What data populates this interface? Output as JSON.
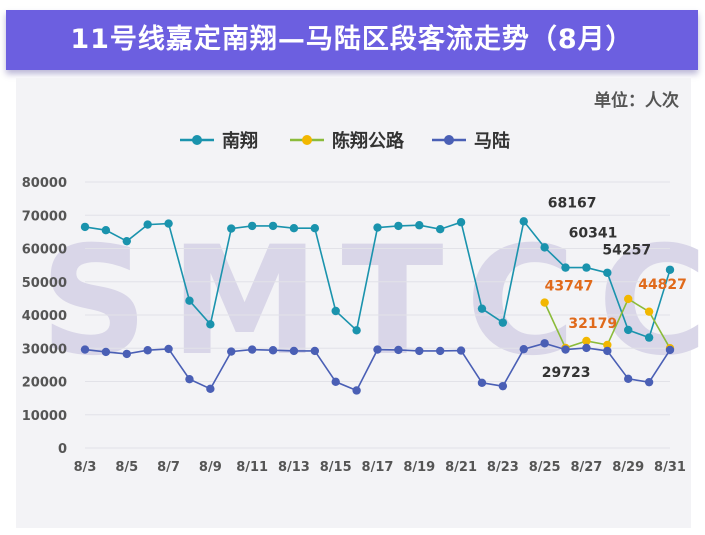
{
  "title": "11号线嘉定南翔—马陆区段客流走势（8月）",
  "unit_label": "单位：人次",
  "watermark": "SMTCC",
  "chart_data": {
    "type": "line",
    "x": [
      "8/3",
      "8/4",
      "8/5",
      "8/6",
      "8/7",
      "8/8",
      "8/9",
      "8/10",
      "8/11",
      "8/12",
      "8/13",
      "8/14",
      "8/15",
      "8/16",
      "8/17",
      "8/18",
      "8/19",
      "8/20",
      "8/21",
      "8/22",
      "8/23",
      "8/24",
      "8/25",
      "8/26",
      "8/27",
      "8/28",
      "8/29",
      "8/30",
      "8/31"
    ],
    "x_tick_labels": [
      "8/3",
      "8/5",
      "8/7",
      "8/9",
      "8/11",
      "8/13",
      "8/15",
      "8/17",
      "8/19",
      "8/21",
      "8/23",
      "8/25",
      "8/27",
      "8/29",
      "8/31"
    ],
    "ylim": [
      0,
      80000
    ],
    "yticks": [
      0,
      10000,
      20000,
      30000,
      40000,
      50000,
      60000,
      70000,
      80000
    ],
    "grid": true,
    "legend_position": "top",
    "series": [
      {
        "name": "南翔",
        "color": "#1a93ad",
        "values": [
          66500,
          65500,
          62200,
          67200,
          67500,
          44300,
          37200,
          66000,
          66800,
          66800,
          66100,
          66100,
          41200,
          35400,
          66300,
          66800,
          67000,
          65800,
          67900,
          41900,
          37700,
          68167,
          60341,
          54257,
          54257,
          52700,
          35500,
          33200,
          53600
        ]
      },
      {
        "name": "陈翔公路",
        "color": "#8bbb3a",
        "marker_color": "#f2b700",
        "values": [
          null,
          null,
          null,
          null,
          null,
          null,
          null,
          null,
          null,
          null,
          null,
          null,
          null,
          null,
          null,
          null,
          null,
          null,
          null,
          null,
          null,
          null,
          43747,
          30100,
          32179,
          31000,
          44827,
          41000,
          30000
        ]
      },
      {
        "name": "马陆",
        "color": "#4a5fb5",
        "values": [
          29600,
          28900,
          28300,
          29400,
          29800,
          20700,
          17800,
          29000,
          29600,
          29400,
          29200,
          29200,
          19900,
          17300,
          29600,
          29500,
          29200,
          29200,
          29300,
          19600,
          18600,
          29723,
          31500,
          29600,
          30100,
          29200,
          20800,
          19800,
          29500
        ]
      }
    ],
    "annotations": [
      {
        "series": "南翔",
        "x": "8/24",
        "label": "68167",
        "color": "#333333"
      },
      {
        "series": "南翔",
        "x": "8/25",
        "label": "60341",
        "color": "#333333"
      },
      {
        "series": "南翔",
        "x": "8/27",
        "label": "54257",
        "color": "#333333"
      },
      {
        "series": "马陆",
        "x": "8/24",
        "label": "29723",
        "color": "#333333"
      },
      {
        "series": "陈翔公路",
        "x": "8/25",
        "label": "43747",
        "color": "#e06a1b"
      },
      {
        "series": "陈翔公路",
        "x": "8/27",
        "label": "32179",
        "color": "#e06a1b"
      },
      {
        "series": "陈翔公路",
        "x": "8/29",
        "label": "44827",
        "color": "#e06a1b"
      }
    ]
  }
}
